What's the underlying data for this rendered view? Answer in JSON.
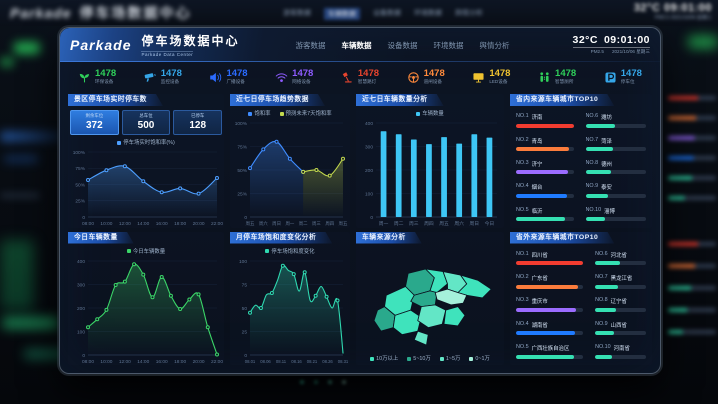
{
  "app": {
    "logo": "Parkade",
    "title": "停车场数据中心",
    "subtitle": "Parkade Data Center",
    "temp": "32°C",
    "time": "09:01:00",
    "pm": "PM2.5",
    "date": "2021/10/06 星期三",
    "accent_color": "#2e6fd6"
  },
  "nav": {
    "items": [
      {
        "label": "游客数据",
        "active": false
      },
      {
        "label": "车辆数据",
        "active": true
      },
      {
        "label": "设备数据",
        "active": false
      },
      {
        "label": "环境数据",
        "active": false
      },
      {
        "label": "舆情分析",
        "active": false
      }
    ]
  },
  "stats": {
    "items": [
      {
        "icon": "sprout-icon",
        "value": "1478",
        "label": "环保设备",
        "color": "#2fcf5a"
      },
      {
        "icon": "camera-icon",
        "value": "1478",
        "label": "监控设备",
        "color": "#35a6e8"
      },
      {
        "icon": "speaker-icon",
        "value": "1478",
        "label": "广播设备",
        "color": "#2b6bff"
      },
      {
        "icon": "wifi-icon",
        "value": "1478",
        "label": "网络设备",
        "color": "#8e5bff"
      },
      {
        "icon": "lamp-icon",
        "value": "1478",
        "label": "智慧路灯",
        "color": "#e8442e"
      },
      {
        "icon": "steering-wheel-icon",
        "value": "1478",
        "label": "道闸设备",
        "color": "#ff8a3c"
      },
      {
        "icon": "led-screen-icon",
        "value": "1478",
        "label": "LED设备",
        "color": "#f0c330"
      },
      {
        "icon": "people-icon",
        "value": "1478",
        "label": "智慧厕所",
        "color": "#2fcf5a"
      },
      {
        "icon": "parking-icon",
        "value": "1478",
        "label": "停车位",
        "color": "#35a6e8"
      }
    ]
  },
  "panels": {
    "realtime": {
      "title": "景区停车场实时停车数",
      "boxes": [
        {
          "label": "剩余车位",
          "value": "372"
        },
        {
          "label": "总车位",
          "value": "500"
        },
        {
          "label": "已停车",
          "value": "128"
        }
      ]
    },
    "week_trend": {
      "title": "近七日停车场趋势数据"
    },
    "week_count": {
      "title": "近七日车辆数量分析"
    },
    "top_in": {
      "title": "省内来源车辆城市TOP10"
    },
    "today": {
      "title": "今日车辆数量"
    },
    "month": {
      "title": "月停车场饱和度变化分析"
    },
    "map": {
      "title": "车辆来源分析"
    },
    "top_out": {
      "title": "省外来源车辆城市TOP10"
    }
  },
  "chart_data": [
    {
      "id": "realtime_saturation",
      "type": "line",
      "title": "景区停车场实时停车数",
      "legend": [
        {
          "name": "停车场实时饱和率(%)",
          "color": "#4d9fff"
        }
      ],
      "xticks": [
        "08:00",
        "10:00",
        "12:00",
        "14:00",
        "16:00",
        "18:00",
        "20:00",
        "22:00"
      ],
      "values": [
        57,
        72,
        78,
        55,
        38,
        44,
        36,
        60
      ],
      "ylim": [
        0,
        100
      ],
      "yticks": [
        "0",
        "25%",
        "50%",
        "75%",
        "100%"
      ],
      "color": "#4d9fff",
      "area": true
    },
    {
      "id": "week_trend",
      "type": "line",
      "title": "近七日停车场趋势数据",
      "xticks": [
        "周五",
        "周六",
        "周日",
        "周一",
        "周二",
        "周三",
        "周四",
        "周五"
      ],
      "series": [
        {
          "name": "饱和率",
          "color": "#3f8cff",
          "values": [
            52,
            72,
            80,
            62,
            48,
            null,
            null,
            null
          ]
        },
        {
          "name": "预测未来7天饱和率",
          "color": "#c3d94e",
          "values": [
            null,
            null,
            null,
            null,
            48,
            50,
            44,
            62
          ]
        }
      ],
      "ylim": [
        0,
        100
      ],
      "yticks": [
        "0",
        "25%",
        "50%",
        "75%",
        "100%"
      ],
      "area": true,
      "xfs": 4.4
    },
    {
      "id": "week_count",
      "type": "bar",
      "title": "近七日车辆数量分析",
      "legend": [
        {
          "name": "车辆数量",
          "color": "#3ec6f5"
        }
      ],
      "xticks": [
        "周一",
        "周二",
        "周三",
        "周四",
        "周五",
        "周六",
        "周日",
        "今日"
      ],
      "values": [
        365,
        352,
        330,
        310,
        340,
        312,
        352,
        338
      ],
      "ylim": [
        0,
        400
      ],
      "yticks": [
        "0",
        "100",
        "200",
        "300",
        "400"
      ],
      "color": "#3ec6f5"
    },
    {
      "id": "city_in_top10",
      "type": "hbar",
      "title": "省内来源车辆城市TOP10",
      "items": [
        {
          "rank": "NO.1",
          "name": "济南",
          "value": 100,
          "color": "#f23c30"
        },
        {
          "rank": "NO.2",
          "name": "青岛",
          "value": 93,
          "color": "#fb7c3c"
        },
        {
          "rank": "NO.3",
          "name": "济宁",
          "value": 90,
          "color": "#9b6cff"
        },
        {
          "rank": "NO.4",
          "name": "烟台",
          "value": 88,
          "color": "#1f7bff"
        },
        {
          "rank": "NO.5",
          "name": "临沂",
          "value": 86,
          "color": "#35e0b2"
        },
        {
          "rank": "NO.6",
          "name": "潍坊",
          "value": 48,
          "color": "#35e0b2"
        },
        {
          "rank": "NO.7",
          "name": "菏泽",
          "value": 45,
          "color": "#35e0b2"
        },
        {
          "rank": "NO.8",
          "name": "德州",
          "value": 42,
          "color": "#35e0b2"
        },
        {
          "rank": "NO.9",
          "name": "泰安",
          "value": 38,
          "color": "#35e0b2"
        },
        {
          "rank": "NO.10",
          "name": "淄博",
          "value": 33,
          "color": "#35e0b2"
        }
      ]
    },
    {
      "id": "today_count",
      "type": "line",
      "title": "今日车辆数量",
      "legend": [
        {
          "name": "今日车辆数量",
          "color": "#3bd568"
        }
      ],
      "xticks": [
        "08:00",
        "10:00",
        "12:00",
        "14:00",
        "16:00",
        "18:00",
        "20:00",
        "22:00"
      ],
      "values": [
        118,
        152,
        192,
        298,
        312,
        386,
        342,
        246,
        332,
        252,
        196,
        236,
        258,
        118,
        2
      ],
      "ylim": [
        0,
        400
      ],
      "yticks": [
        "0",
        "100",
        "200",
        "300",
        "400"
      ],
      "color": "#3bd568",
      "area": true
    },
    {
      "id": "month_saturation",
      "type": "line",
      "title": "月停车场饱和度变化分析",
      "legend": [
        {
          "name": "停车场饱和度变化",
          "color": "#2fd8b0"
        }
      ],
      "xticks": [
        "08.01",
        "08.06",
        "08.11",
        "08.16",
        "08.21",
        "08.26",
        "08.31"
      ],
      "values": [
        45,
        53,
        50,
        64,
        66,
        79,
        95,
        90,
        86,
        68,
        88,
        58,
        63,
        73,
        62,
        50,
        58,
        2
      ],
      "ylim": [
        0,
        100
      ],
      "yticks": [
        "0",
        "25",
        "50",
        "75",
        "100"
      ],
      "color": "#2fd8b0",
      "area": true,
      "dotEvery": 2,
      "xfs": 4.2
    },
    {
      "id": "vehicle_source_map",
      "type": "map",
      "title": "车辆来源分析",
      "legend": [
        {
          "name": "10万以上",
          "color": "#3fe3bc"
        },
        {
          "name": "5~10万",
          "color": "#2aa98c"
        },
        {
          "name": "1~5万",
          "color": "#63e6c6"
        },
        {
          "name": "0~1万",
          "color": "#a5f0da"
        }
      ]
    },
    {
      "id": "city_out_top10",
      "type": "hbar",
      "title": "省外来源车辆城市TOP10",
      "items": [
        {
          "rank": "NO.1",
          "name": "四川省",
          "value": 100,
          "color": "#f23c30"
        },
        {
          "rank": "NO.2",
          "name": "广东省",
          "value": 93,
          "color": "#fb7c3c"
        },
        {
          "rank": "NO.3",
          "name": "重庆市",
          "value": 90,
          "color": "#9b6cff"
        },
        {
          "rank": "NO.4",
          "name": "湖南省",
          "value": 88,
          "color": "#1f7bff"
        },
        {
          "rank": "NO.5",
          "name": "广西壮族自治区",
          "value": 86,
          "color": "#35e0b2"
        },
        {
          "rank": "NO.6",
          "name": "河北省",
          "value": 48,
          "color": "#35e0b2"
        },
        {
          "rank": "NO.7",
          "name": "黑龙江省",
          "value": 45,
          "color": "#35e0b2"
        },
        {
          "rank": "NO.8",
          "name": "辽宁省",
          "value": 42,
          "color": "#35e0b2"
        },
        {
          "rank": "NO.9",
          "name": "山西省",
          "value": 38,
          "color": "#35e0b2"
        },
        {
          "rank": "NO.10",
          "name": "河南省",
          "value": 33,
          "color": "#35e0b2"
        }
      ]
    }
  ]
}
